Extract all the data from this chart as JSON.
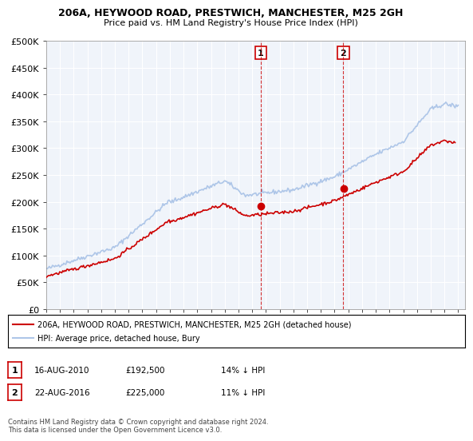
{
  "title1": "206A, HEYWOOD ROAD, PRESTWICH, MANCHESTER, M25 2GH",
  "title2": "Price paid vs. HM Land Registry's House Price Index (HPI)",
  "ylabel_ticks": [
    "£0",
    "£50K",
    "£100K",
    "£150K",
    "£200K",
    "£250K",
    "£300K",
    "£350K",
    "£400K",
    "£450K",
    "£500K"
  ],
  "ytick_values": [
    0,
    50000,
    100000,
    150000,
    200000,
    250000,
    300000,
    350000,
    400000,
    450000,
    500000
  ],
  "xlim": [
    1995.0,
    2025.5
  ],
  "ylim": [
    0,
    500000
  ],
  "sale1_date": 2010.62,
  "sale1_price": 192500,
  "sale1_label": "1",
  "sale2_date": 2016.64,
  "sale2_price": 225000,
  "sale2_label": "2",
  "hpi_color": "#aec6e8",
  "price_color": "#cc0000",
  "marker_color": "#cc0000",
  "vline_color": "#cc0000",
  "legend_line1": "206A, HEYWOOD ROAD, PRESTWICH, MANCHESTER, M25 2GH (detached house)",
  "legend_line2": "HPI: Average price, detached house, Bury",
  "annotation1": "1   16-AUG-2010       £192,500        14% ↓ HPI",
  "annotation2": "2   22-AUG-2016       £225,000        11% ↓ HPI",
  "footnote": "Contains HM Land Registry data © Crown copyright and database right 2024.\nThis data is licensed under the Open Government Licence v3.0.",
  "background_color": "#ffffff",
  "plot_bg_color": "#f0f4fa"
}
